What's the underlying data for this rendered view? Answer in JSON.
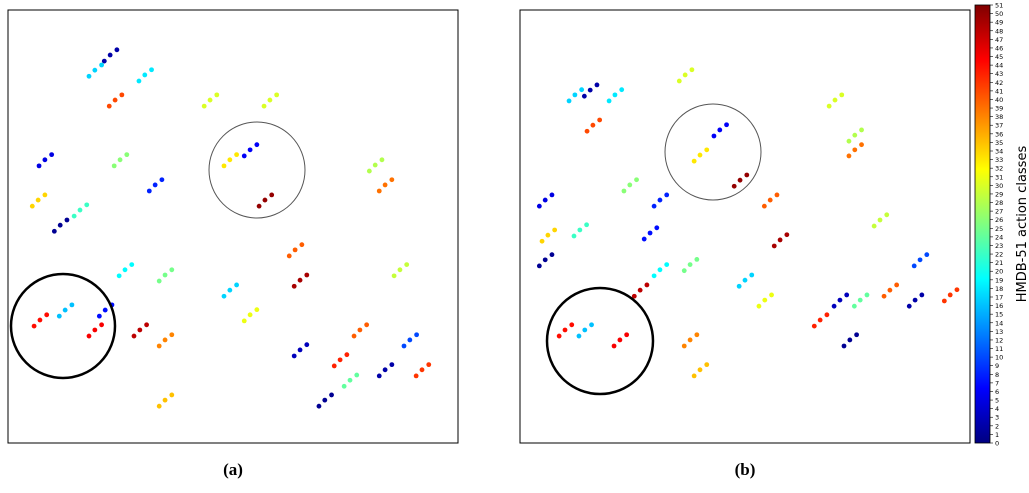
{
  "chart_data": [
    {
      "type": "scatter",
      "caption": "(a)",
      "xlim": [
        0,
        100
      ],
      "ylim": [
        0,
        100
      ],
      "x": [
        22.7,
        24.2,
        21.4,
        19.3,
        20.8,
        18.0,
        30.4,
        31.9,
        29.1,
        23.8,
        25.3,
        22.5,
        44.9,
        46.4,
        43.6,
        58.2,
        59.7,
        56.9,
        8.2,
        9.7,
        6.9,
        6.7,
        8.2,
        5.4,
        11.6,
        13.1,
        10.3,
        24.9,
        26.4,
        23.6,
        32.7,
        34.2,
        31.4,
        16.0,
        17.5,
        14.7,
        53.8,
        55.3,
        52.5,
        49.3,
        50.8,
        48.0,
        57.1,
        58.6,
        55.8,
        81.6,
        83.1,
        80.3,
        83.8,
        85.3,
        82.5,
        63.8,
        65.3,
        62.5,
        64.9,
        66.4,
        63.6,
        7.1,
        8.6,
        5.8,
        12.7,
        14.2,
        11.4,
        19.3,
        20.8,
        18.0,
        21.6,
        23.1,
        20.3,
        29.3,
        30.8,
        28.0,
        26.0,
        27.5,
        24.7,
        34.9,
        36.4,
        33.6,
        34.9,
        36.4,
        33.6,
        34.9,
        36.4,
        33.6,
        49.3,
        50.8,
        48.0,
        53.8,
        55.3,
        52.5,
        64.9,
        66.4,
        63.6,
        76.0,
        77.5,
        74.7,
        73.8,
        75.3,
        72.5,
        78.2,
        79.7,
        76.9,
        89.3,
        90.8,
        88.0,
        92.0,
        93.5,
        90.7,
        83.8,
        85.3,
        82.5,
        70.4,
        71.9,
        69.1,
        87.1,
        88.6,
        85.8
      ],
      "y": [
        89.6,
        90.8,
        88.2,
        86.1,
        87.3,
        84.7,
        85.0,
        86.2,
        83.6,
        79.2,
        80.4,
        77.8,
        79.2,
        80.4,
        77.8,
        79.2,
        80.4,
        77.8,
        65.4,
        66.6,
        64.0,
        56.1,
        57.3,
        54.7,
        50.3,
        51.5,
        48.9,
        65.4,
        66.6,
        64.0,
        59.6,
        60.8,
        58.2,
        53.8,
        55.0,
        52.4,
        67.7,
        68.9,
        66.3,
        65.4,
        66.6,
        64.0,
        56.1,
        57.3,
        54.7,
        64.2,
        65.4,
        62.8,
        59.6,
        60.8,
        58.2,
        44.6,
        45.8,
        43.2,
        37.6,
        38.8,
        36.2,
        28.4,
        29.6,
        27.0,
        30.7,
        31.9,
        29.3,
        26.1,
        27.3,
        24.7,
        30.7,
        31.9,
        29.3,
        26.1,
        27.3,
        24.7,
        40.0,
        41.2,
        38.6,
        38.8,
        40.0,
        37.4,
        23.8,
        25.0,
        22.4,
        9.9,
        11.1,
        8.5,
        35.3,
        36.5,
        33.9,
        29.6,
        30.8,
        28.2,
        21.5,
        22.7,
        20.1,
        14.5,
        15.7,
        13.1,
        19.2,
        20.4,
        17.8,
        26.1,
        27.3,
        24.7,
        23.8,
        25.0,
        22.4,
        16.9,
        18.1,
        15.5,
        16.9,
        18.1,
        15.5,
        9.9,
        11.1,
        8.5,
        40.0,
        41.2,
        38.6
      ],
      "c": [
        2,
        2,
        2,
        17,
        17,
        17,
        18,
        18,
        18,
        41,
        41,
        41,
        30,
        30,
        30,
        30,
        30,
        30,
        5,
        5,
        5,
        34,
        34,
        34,
        1,
        1,
        1,
        26,
        26,
        26,
        8,
        8,
        8,
        22,
        22,
        22,
        6,
        6,
        6,
        33,
        33,
        33,
        50,
        50,
        50,
        28,
        28,
        28,
        39,
        39,
        39,
        40,
        40,
        40,
        49,
        49,
        49,
        44,
        44,
        44,
        16,
        16,
        16,
        45,
        45,
        45,
        7,
        7,
        7,
        48,
        48,
        48,
        19,
        19,
        19,
        25,
        25,
        25,
        38,
        38,
        38,
        35,
        35,
        35,
        17,
        17,
        17,
        31,
        31,
        31,
        3,
        3,
        3,
        24,
        24,
        24,
        43,
        43,
        43,
        40,
        40,
        40,
        10,
        10,
        10,
        42,
        42,
        42,
        2,
        2,
        2,
        1,
        1,
        1,
        29,
        29,
        29
      ]
    },
    {
      "type": "scatter",
      "caption": "(b)",
      "xlim": [
        0,
        100
      ],
      "ylim": [
        0,
        100
      ],
      "x": [
        15.6,
        17.1,
        14.3,
        12.2,
        13.7,
        10.9,
        21.1,
        22.6,
        19.8,
        16.2,
        17.7,
        14.9,
        36.7,
        38.2,
        35.4,
        70.0,
        71.5,
        68.7,
        5.6,
        7.1,
        4.3,
        6.2,
        7.7,
        4.9,
        5.6,
        7.1,
        4.3,
        24.4,
        25.9,
        23.1,
        31.1,
        32.6,
        29.8,
        13.3,
        14.8,
        12.0,
        44.4,
        45.9,
        43.1,
        40.0,
        41.5,
        38.7,
        48.9,
        50.4,
        47.6,
        74.4,
        75.9,
        73.1,
        74.4,
        75.9,
        73.1,
        55.6,
        57.1,
        54.3,
        57.8,
        59.3,
        56.5,
        10.0,
        11.5,
        8.7,
        14.4,
        15.9,
        13.1,
        22.2,
        23.7,
        20.9,
        28.9,
        30.4,
        27.6,
        26.7,
        28.2,
        25.4,
        31.1,
        32.6,
        29.8,
        37.8,
        39.3,
        36.5,
        37.8,
        39.3,
        36.5,
        40.0,
        41.5,
        38.7,
        50.0,
        51.5,
        48.7,
        54.4,
        55.9,
        53.1,
        71.1,
        72.6,
        69.8,
        75.6,
        77.1,
        74.3,
        66.7,
        68.2,
        65.4,
        82.2,
        83.7,
        80.9,
        88.9,
        90.4,
        87.6,
        95.6,
        97.1,
        94.3,
        87.8,
        89.3,
        86.5,
        73.3,
        74.8,
        72.0,
        80.0,
        81.5,
        78.7
      ],
      "y": [
        81.5,
        82.7,
        80.1,
        80.4,
        81.6,
        79.0,
        80.4,
        81.6,
        79.0,
        73.4,
        74.6,
        72.0,
        85.0,
        86.2,
        83.6,
        79.2,
        80.4,
        77.8,
        56.1,
        57.3,
        54.7,
        48.0,
        49.2,
        46.6,
        42.3,
        43.5,
        40.9,
        59.6,
        60.8,
        58.2,
        56.1,
        57.3,
        54.7,
        49.2,
        50.4,
        47.8,
        72.3,
        73.5,
        70.9,
        66.5,
        67.7,
        65.1,
        60.7,
        61.9,
        59.3,
        71.1,
        72.3,
        69.7,
        67.7,
        68.9,
        66.3,
        56.1,
        57.3,
        54.7,
        46.9,
        48.1,
        45.5,
        26.1,
        27.3,
        24.7,
        26.1,
        27.3,
        24.7,
        23.8,
        25.0,
        22.4,
        48.5,
        49.7,
        47.1,
        35.3,
        36.5,
        33.9,
        40.0,
        41.2,
        38.6,
        41.2,
        42.4,
        39.8,
        23.8,
        25.0,
        22.4,
        16.9,
        18.1,
        15.5,
        37.6,
        38.8,
        36.2,
        33.0,
        34.2,
        31.6,
        33.0,
        34.2,
        31.6,
        33.0,
        34.2,
        31.6,
        28.4,
        29.6,
        27.0,
        35.3,
        36.5,
        33.9,
        42.3,
        43.5,
        40.9,
        34.2,
        35.4,
        32.8,
        33.0,
        34.2,
        31.6,
        23.8,
        25.0,
        22.4,
        51.5,
        52.7,
        50.1
      ],
      "c": [
        2,
        2,
        2,
        17,
        17,
        17,
        18,
        18,
        18,
        41,
        41,
        41,
        30,
        30,
        30,
        30,
        30,
        30,
        5,
        5,
        5,
        34,
        34,
        34,
        1,
        1,
        1,
        26,
        26,
        26,
        8,
        8,
        8,
        22,
        22,
        22,
        6,
        6,
        6,
        33,
        33,
        33,
        50,
        50,
        50,
        28,
        28,
        28,
        39,
        39,
        39,
        40,
        40,
        40,
        49,
        49,
        49,
        44,
        44,
        44,
        16,
        16,
        16,
        45,
        45,
        45,
        7,
        7,
        7,
        48,
        48,
        48,
        19,
        19,
        19,
        25,
        25,
        25,
        38,
        38,
        38,
        35,
        35,
        35,
        17,
        17,
        17,
        31,
        31,
        31,
        3,
        3,
        3,
        24,
        24,
        24,
        43,
        43,
        43,
        40,
        40,
        40,
        10,
        10,
        10,
        42,
        42,
        42,
        2,
        2,
        2,
        1,
        1,
        1,
        29,
        29,
        29
      ]
    },
    {
      "type": "colorbar",
      "label": "HMDB-51 action classes",
      "clim": [
        0,
        51
      ],
      "ticks": [
        0,
        1,
        2,
        3,
        4,
        5,
        6,
        7,
        8,
        9,
        10,
        11,
        12,
        13,
        14,
        15,
        16,
        17,
        18,
        19,
        20,
        21,
        22,
        23,
        24,
        25,
        26,
        27,
        28,
        29,
        30,
        31,
        32,
        33,
        34,
        35,
        36,
        37,
        38,
        39,
        40,
        41,
        42,
        43,
        44,
        45,
        46,
        47,
        48,
        49,
        50,
        51
      ]
    }
  ]
}
